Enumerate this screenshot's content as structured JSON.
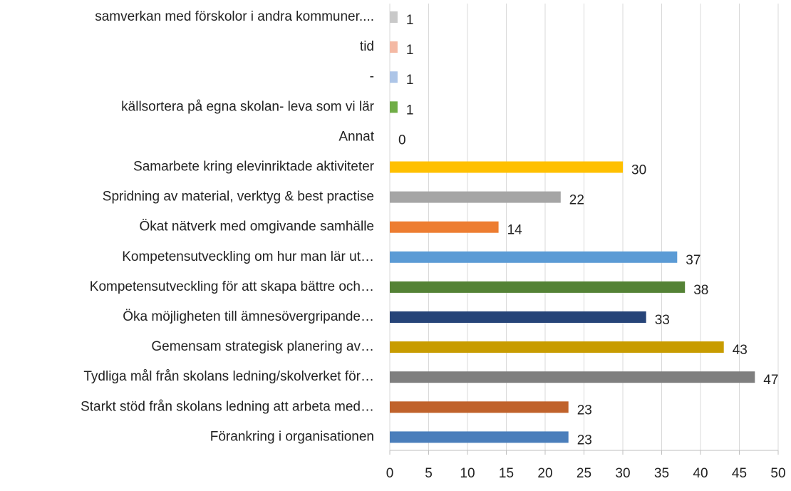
{
  "chart_data": {
    "type": "barh",
    "categories": [
      "samverkan med förskolor i andra kommuner....",
      "tid",
      "-",
      "källsortera på egna skolan- leva som vi lär",
      "Annat",
      "Samarbete kring elevinriktade aktiviteter",
      "Spridning av material, verktyg & best practise",
      "Ökat nätverk med omgivande samhälle",
      "Kompetensutveckling om hur man lär ut…",
      "Kompetensutveckling för att skapa bättre och…",
      "Öka möjligheten till ämnesövergripande…",
      "Gemensam strategisk planering av…",
      "Tydliga mål från skolans ledning/skolverket för…",
      "Starkt stöd från skolans ledning att arbeta med…",
      "Förankring i organisationen"
    ],
    "values": [
      1,
      1,
      1,
      1,
      0,
      30,
      22,
      14,
      37,
      38,
      33,
      43,
      47,
      23,
      23
    ],
    "colors": [
      "#c9c9c9",
      "#f4b9a4",
      "#adc5e7",
      "#70ad47",
      "#a5a5a5",
      "#ffc000",
      "#a5a5a5",
      "#ed7d31",
      "#5b9bd5",
      "#548235",
      "#264478",
      "#c89c00",
      "#7f7f7f",
      "#c0622b",
      "#4a7ebb"
    ],
    "xlim": [
      0,
      50
    ],
    "xticks": [
      0,
      5,
      10,
      15,
      20,
      25,
      30,
      35,
      40,
      45,
      50
    ],
    "grid": true
  }
}
